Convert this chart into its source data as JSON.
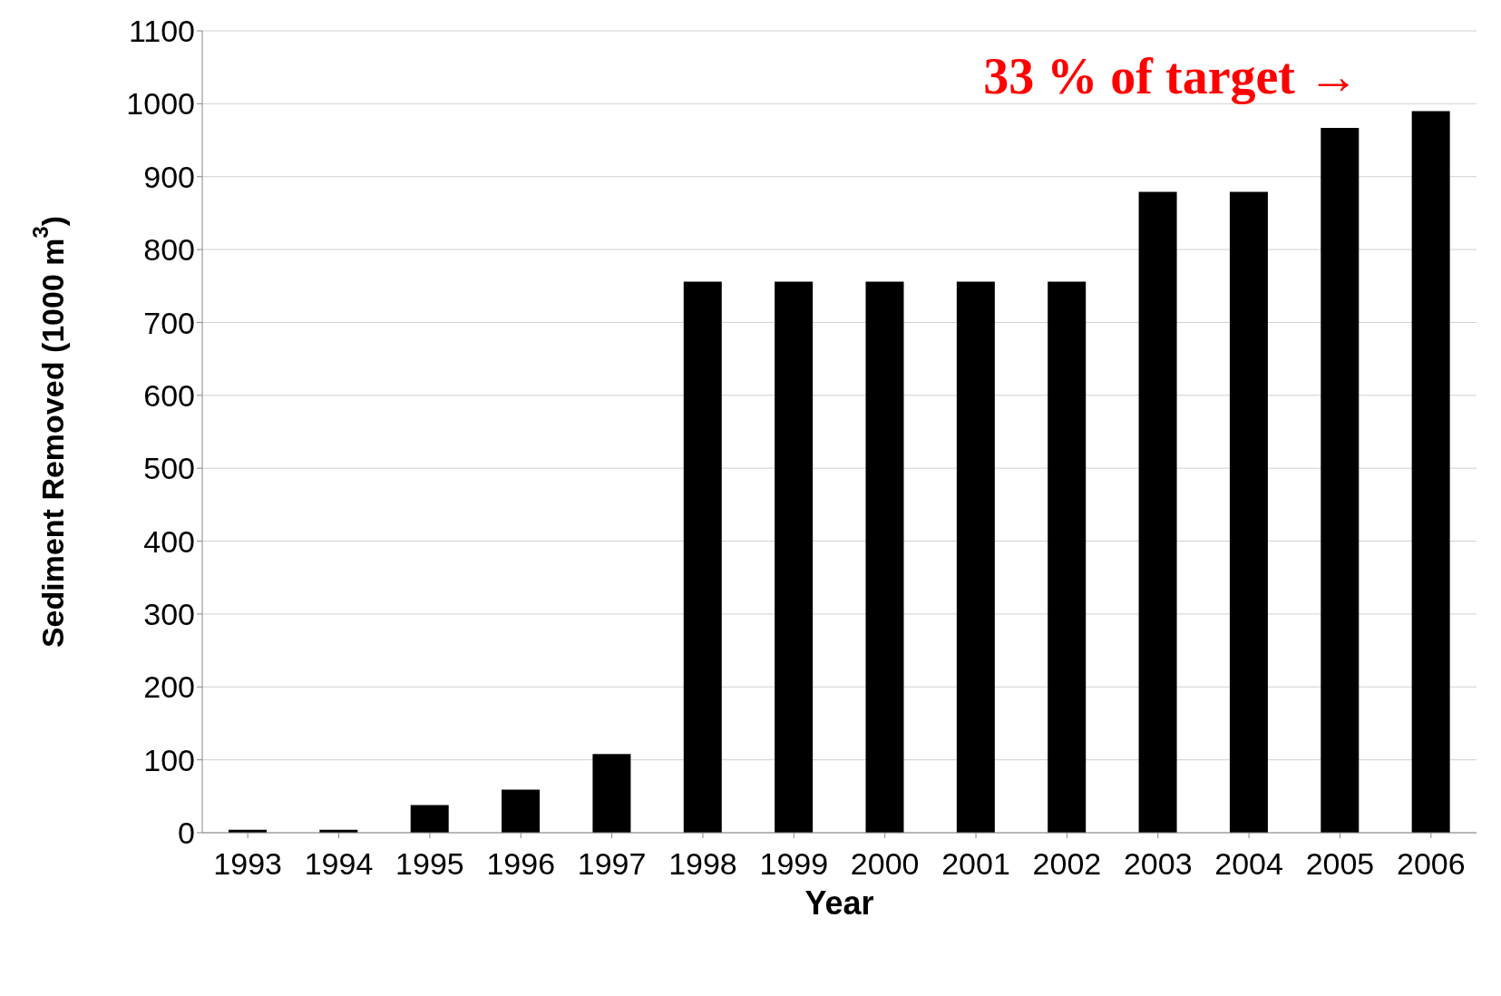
{
  "chart_data": {
    "type": "bar",
    "xlabel": "Year",
    "ylabel": "Sediment Removed (1000 m$^{3}$)",
    "categories": [
      "1993",
      "1994",
      "1995",
      "1996",
      "1997",
      "1998",
      "1999",
      "2000",
      "2001",
      "2002",
      "2003",
      "2004",
      "2005",
      "2006"
    ],
    "values": [
      4,
      4,
      38,
      59,
      108,
      756,
      756,
      756,
      756,
      756,
      879,
      879,
      967,
      990
    ],
    "color": "#000000",
    "ylim": [
      0,
      1100
    ],
    "yticks": [
      0,
      100,
      200,
      300,
      400,
      500,
      600,
      700,
      800,
      900,
      1000,
      1100
    ],
    "grid": "y",
    "legend": false,
    "annotations": [
      "33 % of target →"
    ]
  }
}
